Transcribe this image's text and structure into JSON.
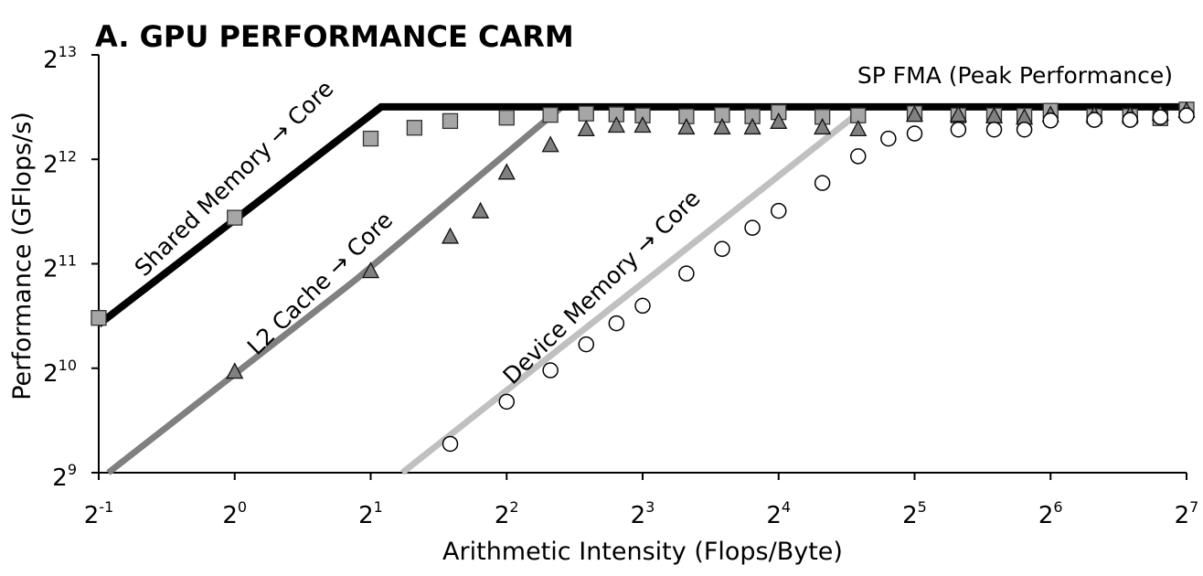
{
  "chart_data": {
    "type": "line",
    "title": "A. GPU PERFORMANCE CARM",
    "xlabel": "Arithmetic Intensity (Flops/Byte)",
    "ylabel": "Performance (GFlops/s)",
    "x_scale": "log2",
    "y_scale": "log2",
    "xlim": [
      0.5,
      128
    ],
    "ylim": [
      512,
      8192
    ],
    "x_ticks": [
      {
        "base": "2",
        "exp": "-1",
        "value": 0.5
      },
      {
        "base": "2",
        "exp": "0",
        "value": 1
      },
      {
        "base": "2",
        "exp": "1",
        "value": 2
      },
      {
        "base": "2",
        "exp": "2",
        "value": 4
      },
      {
        "base": "2",
        "exp": "3",
        "value": 8
      },
      {
        "base": "2",
        "exp": "4",
        "value": 16
      },
      {
        "base": "2",
        "exp": "5",
        "value": 32
      },
      {
        "base": "2",
        "exp": "6",
        "value": 64
      },
      {
        "base": "2",
        "exp": "7",
        "value": 128
      }
    ],
    "y_ticks": [
      {
        "base": "2",
        "exp": "9",
        "value": 512
      },
      {
        "base": "2",
        "exp": "10",
        "value": 1024
      },
      {
        "base": "2",
        "exp": "11",
        "value": 2048
      },
      {
        "base": "2",
        "exp": "12",
        "value": 4096
      },
      {
        "base": "2",
        "exp": "13",
        "value": 8192
      }
    ],
    "grid": false,
    "legend": "none",
    "roofs": [
      {
        "label": "Shared Memory → Core",
        "color": "#000000",
        "points": [
          [
            0.5,
            1370
          ],
          [
            2.11,
            5800
          ],
          [
            128,
            5800
          ]
        ]
      },
      {
        "label": "L2 Cache → Core",
        "color": "#808080",
        "points": [
          [
            0.525,
            512
          ],
          [
            1.85,
            1840
          ],
          [
            5.3,
            5800
          ],
          [
            128,
            5800
          ]
        ]
      },
      {
        "label": "Device Memory → Core",
        "color": "#c0c0c0",
        "points": [
          [
            2.35,
            512
          ],
          [
            25,
            5800
          ],
          [
            128,
            5800
          ]
        ]
      }
    ],
    "peak_label": "SP FMA (Peak Performance)",
    "series": [
      {
        "marker": "square",
        "color": "#a6a6a6",
        "points": [
          [
            0.5,
            1430
          ],
          [
            1.0,
            2780
          ],
          [
            2.0,
            4700
          ],
          [
            2.5,
            5050
          ],
          [
            3.0,
            5280
          ],
          [
            4.0,
            5400
          ],
          [
            5.0,
            5500
          ],
          [
            6.0,
            5550
          ],
          [
            7.0,
            5520
          ],
          [
            8.0,
            5480
          ],
          [
            10.0,
            5450
          ],
          [
            12.0,
            5500
          ],
          [
            14.0,
            5450
          ],
          [
            16.0,
            5600
          ],
          [
            20.0,
            5430
          ],
          [
            24.0,
            5480
          ],
          [
            32.0,
            5560
          ],
          [
            40.0,
            5480
          ],
          [
            48.0,
            5480
          ],
          [
            56.0,
            5470
          ],
          [
            64.0,
            5650
          ],
          [
            80.0,
            5450
          ],
          [
            96.0,
            5450
          ],
          [
            112.0,
            5380
          ],
          [
            128.0,
            5700
          ]
        ]
      },
      {
        "marker": "triangle",
        "color": "#808080",
        "points": [
          [
            1.0,
            1000
          ],
          [
            2.0,
            1950
          ],
          [
            3.0,
            2450
          ],
          [
            3.5,
            2900
          ],
          [
            4.0,
            3750
          ],
          [
            5.0,
            4500
          ],
          [
            6.0,
            5000
          ],
          [
            7.0,
            5120
          ],
          [
            8.0,
            5120
          ],
          [
            10.0,
            5060
          ],
          [
            12.0,
            5060
          ],
          [
            14.0,
            5060
          ],
          [
            16.0,
            5250
          ],
          [
            20.0,
            5060
          ],
          [
            24.0,
            5000
          ],
          [
            32.0,
            5500
          ],
          [
            40.0,
            5500
          ],
          [
            48.0,
            5450
          ],
          [
            56.0,
            5400
          ],
          [
            64.0,
            5500
          ],
          [
            80.0,
            5500
          ],
          [
            96.0,
            5500
          ],
          [
            112.0,
            5550
          ],
          [
            128.0,
            5650
          ]
        ]
      },
      {
        "marker": "circle",
        "color": "#ffffff",
        "points": [
          [
            3.0,
            620
          ],
          [
            4.0,
            820
          ],
          [
            5.0,
            1010
          ],
          [
            6.0,
            1200
          ],
          [
            7.0,
            1380
          ],
          [
            8.0,
            1550
          ],
          [
            10.0,
            1920
          ],
          [
            12.0,
            2260
          ],
          [
            14.0,
            2600
          ],
          [
            16.0,
            2910
          ],
          [
            20.0,
            3500
          ],
          [
            24.0,
            4180
          ],
          [
            28.0,
            4700
          ],
          [
            32.0,
            4860
          ],
          [
            40.0,
            4990
          ],
          [
            48.0,
            4990
          ],
          [
            56.0,
            4990
          ],
          [
            64.0,
            5300
          ],
          [
            80.0,
            5320
          ],
          [
            96.0,
            5320
          ],
          [
            112.0,
            5420
          ],
          [
            128.0,
            5480
          ]
        ]
      }
    ]
  }
}
